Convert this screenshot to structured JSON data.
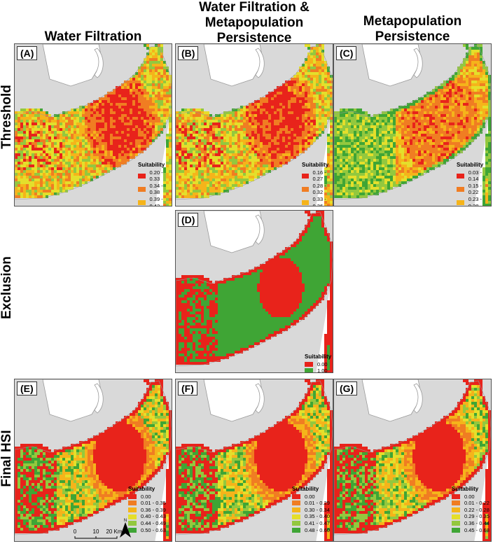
{
  "columns": [
    "Water Filtration",
    "Water Filtration &\nMetapopulation\nPersistence",
    "Metapopulation\nPersistence"
  ],
  "rows": [
    "Threshold",
    "Exclusion",
    "Final HSI"
  ],
  "legend_title": "Suitability",
  "colors": {
    "red": "#e8231b",
    "orange": "#f07d22",
    "amber": "#f5b41a",
    "yellow": "#e4df2b",
    "ygreen": "#93c83e",
    "green": "#3fa535",
    "land": "#d9d9d9",
    "coast": "#9a9a9a"
  },
  "panels": {
    "A": {
      "label": "(A)",
      "legend": [
        "0.20 - 0.33",
        "0.34 - 0.38",
        "0.39 - 0.42",
        "0.43 - 0.47",
        "0.48 - 0.53",
        "0.54 - 0.73"
      ]
    },
    "B": {
      "label": "(B)",
      "legend": [
        "0.16 - 0.27",
        "0.28 - 0.32",
        "0.33 - 0.36",
        "0.37 - 0.42",
        "0.43 - 0.48",
        "0.49 - 0.64"
      ]
    },
    "C": {
      "label": "(C)",
      "legend": [
        "0.03 - 0.14",
        "0.15 - 0.22",
        "0.23 - 0.28",
        "0.29 - 0.36",
        "0.37 - 0.45",
        "0.46 - 0.68"
      ]
    },
    "D": {
      "label": "(D)",
      "legend": [
        "0.00",
        "1.00"
      ]
    },
    "E": {
      "label": "(E)",
      "legend": [
        "0.00",
        "0.01 - 0.35",
        "0.36 - 0.39",
        "0.40 - 0.43",
        "0.44 - 0.49",
        "0.50 - 0.63"
      ]
    },
    "F": {
      "label": "(F)",
      "legend": [
        "0.00",
        "0.01 - 0.29",
        "0.30 - 0.34",
        "0.35 - 0.40",
        "0.41 - 0.47",
        "0.48 - 0.60"
      ]
    },
    "G": {
      "label": "(G)",
      "legend": [
        "0.00",
        "0.01 - 0.22",
        "0.22 - 0.28",
        "0.29 - 0.35",
        "0.36 - 0.44",
        "0.45 - 0.68"
      ]
    }
  },
  "scalebar": {
    "ticks": [
      "0",
      "10",
      "20 Km"
    ],
    "north": "N"
  }
}
